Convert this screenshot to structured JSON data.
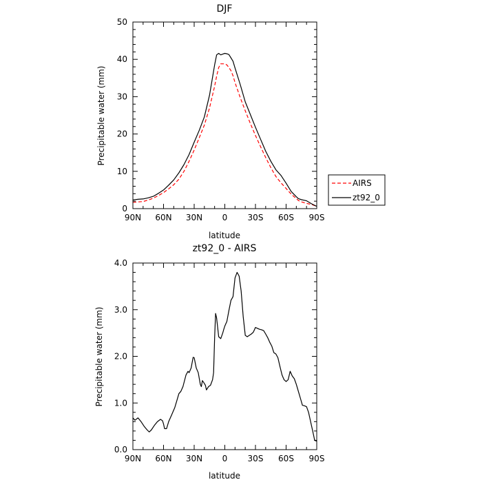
{
  "chart_data": [
    {
      "type": "line",
      "title": "DJF",
      "xlabel": "latitude",
      "ylabel": "Precipitable water (mm)",
      "xlim": [
        90,
        -90
      ],
      "ylim": [
        0,
        50
      ],
      "x_tick_values": [
        90,
        60,
        30,
        0,
        -30,
        -60,
        -90
      ],
      "x_tick_labels": [
        "90N",
        "60N",
        "30N",
        "0",
        "30S",
        "60S",
        "90S"
      ],
      "y_tick_values": [
        0,
        10,
        20,
        30,
        40,
        50
      ],
      "y_tick_labels": [
        "0",
        "10",
        "20",
        "30",
        "40",
        "50"
      ],
      "legend": {
        "placement": "right",
        "entries": [
          "AIRS",
          "zt92_0"
        ]
      },
      "grid": false,
      "series": [
        {
          "name": "AIRS",
          "color": "#ff0000",
          "dash": "dashed",
          "x": [
            90,
            85,
            80,
            75,
            70,
            65,
            60,
            55,
            50,
            45,
            40,
            35,
            30,
            25,
            20,
            15,
            10,
            8,
            6,
            4,
            2,
            0,
            -2,
            -4,
            -6,
            -8,
            -10,
            -15,
            -20,
            -25,
            -30,
            -35,
            -40,
            -45,
            -50,
            -55,
            -60,
            -65,
            -70,
            -72,
            -75,
            -80,
            -85,
            -90
          ],
          "y": [
            1.7,
            1.8,
            1.9,
            2.3,
            2.8,
            3.5,
            4.3,
            5.3,
            6.4,
            7.9,
            10.0,
            12.7,
            15.7,
            19.0,
            22.4,
            27.0,
            32.8,
            35.5,
            37.8,
            38.8,
            38.8,
            38.8,
            38.5,
            37.8,
            37.0,
            35.6,
            33.8,
            29.8,
            26.2,
            22.8,
            19.6,
            16.6,
            13.7,
            11.0,
            8.6,
            6.9,
            5.4,
            3.9,
            2.7,
            2.2,
            1.8,
            1.4,
            1.1,
            0.6
          ]
        },
        {
          "name": "zt92_0",
          "color": "#000000",
          "dash": "solid",
          "x": [
            90,
            85,
            80,
            75,
            70,
            65,
            60,
            55,
            50,
            45,
            40,
            35,
            30,
            25,
            20,
            15,
            10,
            8,
            6,
            4,
            2,
            0,
            -2,
            -4,
            -6,
            -8,
            -10,
            -15,
            -20,
            -25,
            -30,
            -35,
            -40,
            -45,
            -50,
            -55,
            -60,
            -65,
            -70,
            -72,
            -75,
            -80,
            -85,
            -90
          ],
          "y": [
            2.3,
            2.5,
            2.6,
            2.9,
            3.3,
            4.1,
            5.0,
            6.3,
            7.7,
            9.6,
            11.8,
            14.5,
            17.8,
            21.0,
            24.6,
            30.4,
            38.5,
            41.2,
            41.6,
            41.2,
            41.4,
            41.6,
            41.5,
            41.3,
            40.4,
            39.5,
            37.7,
            33.3,
            28.6,
            25.2,
            21.8,
            18.6,
            15.4,
            12.7,
            10.4,
            8.9,
            6.8,
            4.6,
            3.2,
            2.7,
            2.4,
            2.1,
            1.3,
            0.6
          ]
        }
      ]
    },
    {
      "type": "line",
      "title": "zt92_0 - AIRS",
      "xlabel": "latitude",
      "ylabel": "Precipitable water (mm)",
      "xlim": [
        90,
        -90
      ],
      "ylim": [
        0,
        4
      ],
      "x_tick_values": [
        90,
        60,
        30,
        0,
        -30,
        -60,
        -90
      ],
      "x_tick_labels": [
        "90N",
        "60N",
        "30N",
        "0",
        "30S",
        "60S",
        "90S"
      ],
      "y_tick_values": [
        0,
        1,
        2,
        3,
        4
      ],
      "y_tick_labels": [
        "0.0",
        "1.0",
        "2.0",
        "3.0",
        "4.0"
      ],
      "grid": false,
      "series": [
        {
          "color": "#000000",
          "dash": "solid",
          "x": [
            90,
            88,
            85,
            82,
            79,
            76,
            74,
            72,
            69,
            66,
            63,
            61,
            60,
            59,
            57,
            55,
            52,
            49,
            47,
            45,
            43,
            41,
            38,
            36,
            35,
            33,
            31,
            30,
            28,
            26,
            24,
            23,
            22,
            21,
            19,
            18,
            16,
            14,
            12,
            11,
            10,
            9,
            8,
            6,
            4,
            2,
            1,
            0,
            -2,
            -4,
            -6,
            -8,
            -10,
            -12,
            -14,
            -16,
            -18,
            -20,
            -22,
            -24,
            -26,
            -28,
            -30,
            -32,
            -34,
            -36,
            -38,
            -40,
            -42,
            -44,
            -46,
            -48,
            -50,
            -52,
            -54,
            -56,
            -58,
            -60,
            -62,
            -64,
            -66,
            -68,
            -70,
            -72,
            -74,
            -76,
            -78,
            -80,
            -82,
            -84,
            -86,
            -88,
            -90
          ],
          "y": [
            0.68,
            0.63,
            0.68,
            0.6,
            0.5,
            0.42,
            0.38,
            0.42,
            0.52,
            0.6,
            0.65,
            0.62,
            0.55,
            0.45,
            0.45,
            0.6,
            0.75,
            0.9,
            1.05,
            1.2,
            1.25,
            1.35,
            1.6,
            1.68,
            1.65,
            1.75,
            1.98,
            1.97,
            1.75,
            1.65,
            1.4,
            1.35,
            1.48,
            1.45,
            1.38,
            1.28,
            1.35,
            1.38,
            1.5,
            1.65,
            2.4,
            2.92,
            2.82,
            2.42,
            2.38,
            2.5,
            2.58,
            2.65,
            2.75,
            2.98,
            3.2,
            3.28,
            3.68,
            3.8,
            3.72,
            3.4,
            2.85,
            2.45,
            2.42,
            2.45,
            2.48,
            2.52,
            2.62,
            2.6,
            2.58,
            2.57,
            2.55,
            2.48,
            2.4,
            2.3,
            2.22,
            2.08,
            2.05,
            1.97,
            1.78,
            1.6,
            1.5,
            1.46,
            1.5,
            1.68,
            1.58,
            1.52,
            1.4,
            1.25,
            1.1,
            0.95,
            0.94,
            0.92,
            0.8,
            0.6,
            0.4,
            0.2,
            0.18
          ]
        }
      ]
    }
  ]
}
